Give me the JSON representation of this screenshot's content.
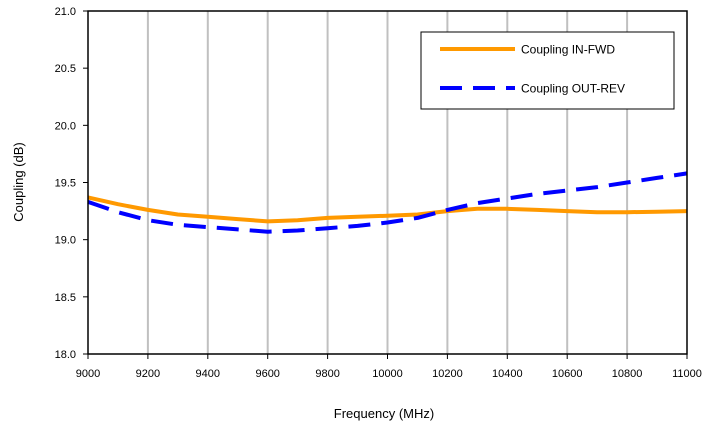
{
  "chart_data": {
    "type": "line",
    "title": "",
    "xlabel": "Frequency (MHz)",
    "ylabel": "Coupling (dB)",
    "xlim": [
      9000,
      11000
    ],
    "ylim": [
      18.0,
      21.0
    ],
    "x_ticks": [
      "9000",
      "9200",
      "9400",
      "9600",
      "9800",
      "10000",
      "10200",
      "10400",
      "10600",
      "10800",
      "11000"
    ],
    "y_ticks": [
      "18.0",
      "18.5",
      "19.0",
      "19.5",
      "20.0",
      "20.5",
      "21.0"
    ],
    "grid": "vertical",
    "legend_position": "top-right",
    "series": [
      {
        "name": "Coupling IN-FWD",
        "color": "#FF9900",
        "style": "solid",
        "x": [
          9000,
          9100,
          9200,
          9300,
          9400,
          9500,
          9600,
          9700,
          9800,
          9900,
          10000,
          10100,
          10200,
          10300,
          10400,
          10500,
          10600,
          10700,
          10800,
          10900,
          11000
        ],
        "y": [
          19.37,
          19.31,
          19.26,
          19.22,
          19.2,
          19.18,
          19.16,
          19.17,
          19.19,
          19.2,
          19.21,
          19.22,
          19.25,
          19.27,
          19.27,
          19.26,
          19.25,
          19.24,
          19.24,
          19.245,
          19.25
        ]
      },
      {
        "name": "Coupling OUT-REV",
        "color": "#0000FF",
        "style": "dashed",
        "x": [
          9000,
          9100,
          9200,
          9300,
          9400,
          9500,
          9600,
          9700,
          9800,
          9900,
          10000,
          10100,
          10200,
          10300,
          10400,
          10500,
          10600,
          10700,
          10800,
          10900,
          11000
        ],
        "y": [
          19.33,
          19.24,
          19.17,
          19.13,
          19.11,
          19.09,
          19.07,
          19.08,
          19.1,
          19.12,
          19.15,
          19.19,
          19.26,
          19.32,
          19.36,
          19.4,
          19.43,
          19.46,
          19.5,
          19.54,
          19.58
        ]
      }
    ]
  }
}
